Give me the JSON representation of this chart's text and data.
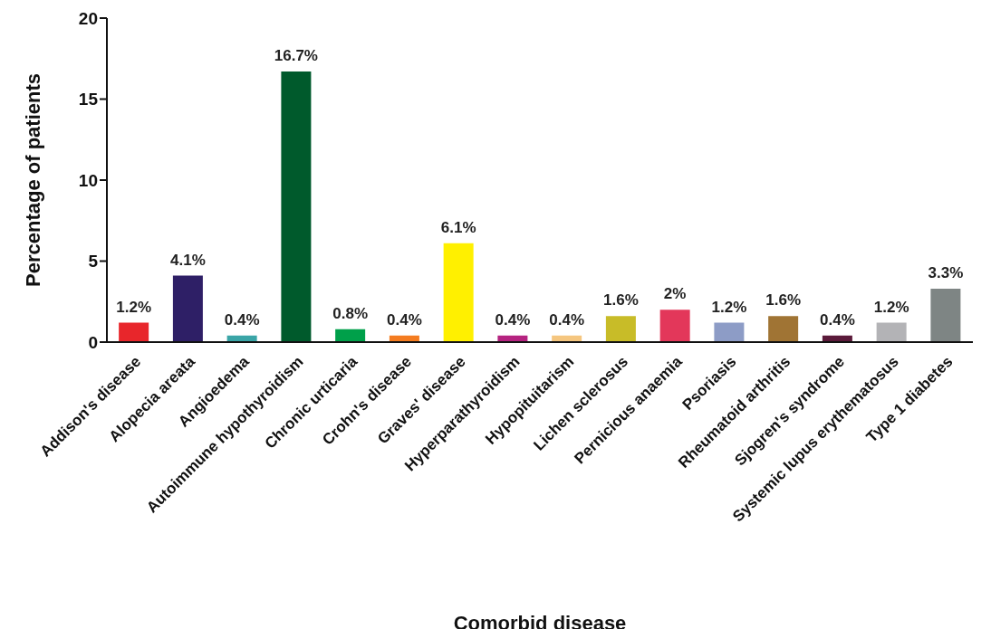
{
  "chart_data": {
    "type": "bar",
    "xlabel": "Comorbid disease",
    "ylabel": "Percentage of patients",
    "categories": [
      "Addison's disease",
      "Alopecia areata",
      "Angioedema",
      "Autoimmune hypothyroidism",
      "Chronic urticaria",
      "Crohn's disease",
      "Graves' disease",
      "Hyperparathyroidism",
      "Hypopituitarism",
      "Lichen sclerosus",
      "Pernicious anaemia",
      "Psoriasis",
      "Rheumatoid arthritis",
      "Sjogren's syndrome",
      "Systemic lupus erythematosus",
      "Type 1 diabetes"
    ],
    "values": [
      1.2,
      4.1,
      0.4,
      16.7,
      0.8,
      0.4,
      6.1,
      0.4,
      0.4,
      1.6,
      2,
      1.2,
      1.6,
      0.4,
      1.2,
      3.3
    ],
    "value_labels": [
      "1.2%",
      "4.1%",
      "0.4%",
      "16.7%",
      "0.8%",
      "0.4%",
      "6.1%",
      "0.4%",
      "0.4%",
      "1.6%",
      "2%",
      "1.2%",
      "1.6%",
      "0.4%",
      "1.2%",
      "3.3%"
    ],
    "colors": [
      "#e8262b",
      "#2e1f66",
      "#3aa5a7",
      "#005a2c",
      "#00a04a",
      "#f47c20",
      "#fff000",
      "#b52380",
      "#f5c67f",
      "#c8bc28",
      "#e3375a",
      "#8d9cc6",
      "#a07434",
      "#5b1a3a",
      "#b3b3b6",
      "#7e8584"
    ],
    "ylim": [
      0,
      20
    ],
    "yticks": [
      0,
      5,
      10,
      15,
      20
    ],
    "grid": false,
    "legend": false
  }
}
